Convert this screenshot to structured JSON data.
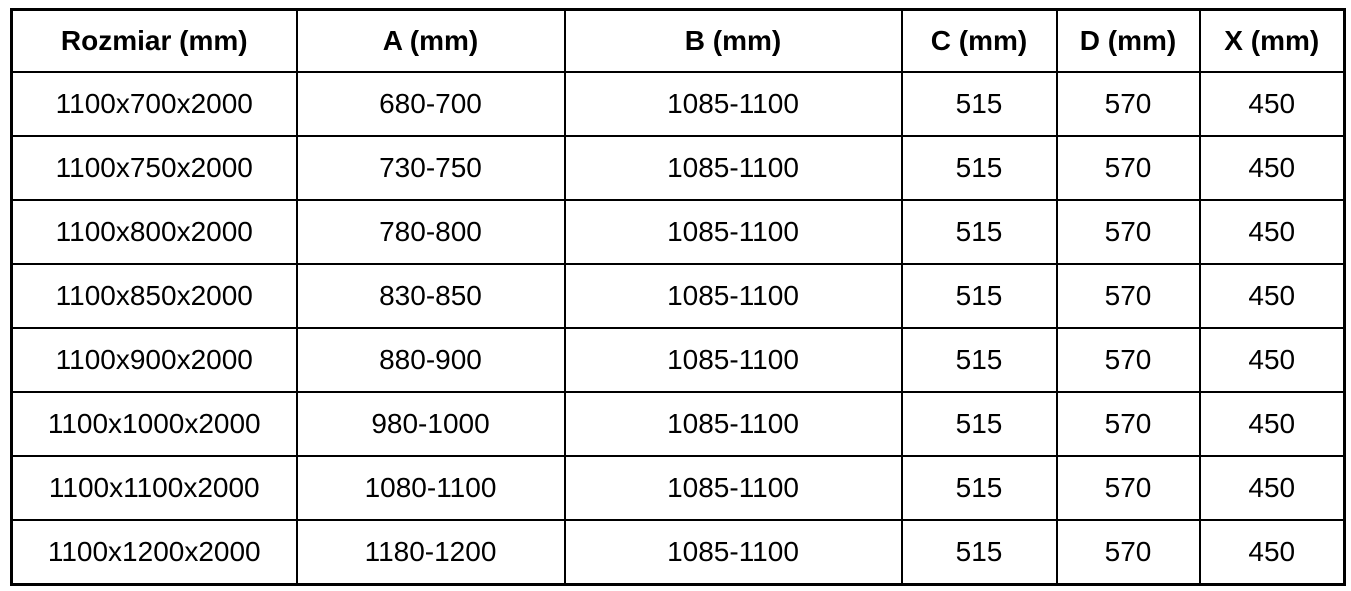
{
  "table": {
    "columns": [
      {
        "label": "Rozmiar (mm)"
      },
      {
        "label": "A (mm)"
      },
      {
        "label": "B (mm)"
      },
      {
        "label": "C (mm)"
      },
      {
        "label": "D (mm)"
      },
      {
        "label": "X (mm)"
      }
    ],
    "rows": [
      [
        "1100x700x2000",
        "680-700",
        "1085-1100",
        "515",
        "570",
        "450"
      ],
      [
        "1100x750x2000",
        "730-750",
        "1085-1100",
        "515",
        "570",
        "450"
      ],
      [
        "1100x800x2000",
        "780-800",
        "1085-1100",
        "515",
        "570",
        "450"
      ],
      [
        "1100x850x2000",
        "830-850",
        "1085-1100",
        "515",
        "570",
        "450"
      ],
      [
        "1100x900x2000",
        "880-900",
        "1085-1100",
        "515",
        "570",
        "450"
      ],
      [
        "1100x1000x2000",
        "980-1000",
        "1085-1100",
        "515",
        "570",
        "450"
      ],
      [
        "1100x1100x2000",
        "1080-1100",
        "1085-1100",
        "515",
        "570",
        "450"
      ],
      [
        "1100x1200x2000",
        "1180-1200",
        "1085-1100",
        "515",
        "570",
        "450"
      ]
    ],
    "colors": {
      "border": "#000000",
      "text": "#000000",
      "background": "#ffffff"
    }
  }
}
